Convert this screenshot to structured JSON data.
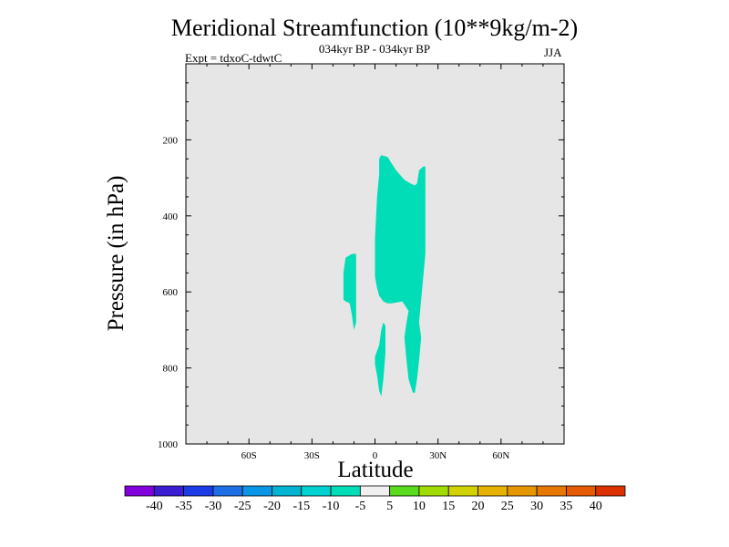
{
  "chart_data": {
    "type": "contour",
    "title": "Meridional Streamfunction (10**9kg/m-2)",
    "subtitle": "034kyr BP - 034kyr BP",
    "experiment_label": "Expt = tdxoC-tdwtC",
    "season": "JJA",
    "xlabel": "Latitude",
    "ylabel": "Pressure (in hPa)",
    "xlim": [
      -90,
      90
    ],
    "ylim": [
      0,
      1000
    ],
    "y_inverted": true,
    "plot_background": "#e6e6e6",
    "x_ticks": [
      {
        "value": -60,
        "label": "60S"
      },
      {
        "value": -30,
        "label": "30S"
      },
      {
        "value": 0,
        "label": "0"
      },
      {
        "value": 30,
        "label": "30N"
      },
      {
        "value": 60,
        "label": "60N"
      }
    ],
    "y_ticks": [
      {
        "value": 200,
        "label": "200"
      },
      {
        "value": 400,
        "label": "400"
      },
      {
        "value": 600,
        "label": "600"
      },
      {
        "value": 800,
        "label": "800"
      },
      {
        "value": 1000,
        "label": "1000"
      }
    ],
    "filled_regions": [
      {
        "range": "-10 to -5",
        "color": "#00ddb7",
        "polygon": [
          [
            3,
            240
          ],
          [
            6,
            245
          ],
          [
            10,
            280
          ],
          [
            14,
            305
          ],
          [
            17,
            315
          ],
          [
            19,
            320
          ],
          [
            20,
            315
          ],
          [
            21,
            280
          ],
          [
            23,
            270
          ],
          [
            24,
            270
          ],
          [
            24,
            500
          ],
          [
            23,
            560
          ],
          [
            22,
            620
          ],
          [
            21,
            680
          ],
          [
            22,
            720
          ],
          [
            21,
            780
          ],
          [
            20,
            830
          ],
          [
            19,
            865
          ],
          [
            18,
            865
          ],
          [
            16,
            830
          ],
          [
            15,
            780
          ],
          [
            14,
            720
          ],
          [
            15,
            680
          ],
          [
            16,
            650
          ],
          [
            13,
            625
          ],
          [
            8,
            630
          ],
          [
            6,
            630
          ],
          [
            4,
            625
          ],
          [
            2,
            610
          ],
          [
            1,
            590
          ],
          [
            0,
            560
          ],
          [
            0,
            460
          ],
          [
            1,
            350
          ],
          [
            2,
            290
          ],
          [
            2,
            250
          ]
        ]
      },
      {
        "range": "-10 to -5",
        "color": "#00ddb7",
        "polygon": [
          [
            -14,
            510
          ],
          [
            -11,
            500
          ],
          [
            -9,
            500
          ],
          [
            -9,
            560
          ],
          [
            -9,
            620
          ],
          [
            -9,
            680
          ],
          [
            -10,
            700
          ],
          [
            -11,
            660
          ],
          [
            -12,
            630
          ],
          [
            -14,
            625
          ],
          [
            -15,
            620
          ],
          [
            -15,
            550
          ]
        ]
      },
      {
        "range": "-10 to -5",
        "color": "#00ddb7",
        "polygon": [
          [
            4,
            680
          ],
          [
            5,
            690
          ],
          [
            5,
            760
          ],
          [
            4,
            830
          ],
          [
            3,
            875
          ],
          [
            2,
            860
          ],
          [
            1,
            820
          ],
          [
            0,
            790
          ],
          [
            0,
            770
          ],
          [
            2,
            740
          ],
          [
            3,
            700
          ]
        ]
      }
    ],
    "colorbar": {
      "colors": [
        "#8200dc",
        "#3c1ed2",
        "#1e3ce6",
        "#1e6ee6",
        "#0a96e6",
        "#00b4d2",
        "#00d2d2",
        "#00ddb7",
        "#f0f0f0",
        "#5adc1e",
        "#a0dc00",
        "#d2d200",
        "#e6b400",
        "#e69600",
        "#e67800",
        "#e65a00",
        "#dc3200"
      ],
      "labels": [
        "-40",
        "-35",
        "-30",
        "-25",
        "-20",
        "-15",
        "-10",
        "-5",
        "5",
        "10",
        "15",
        "20",
        "25",
        "30",
        "35",
        "40"
      ]
    }
  }
}
